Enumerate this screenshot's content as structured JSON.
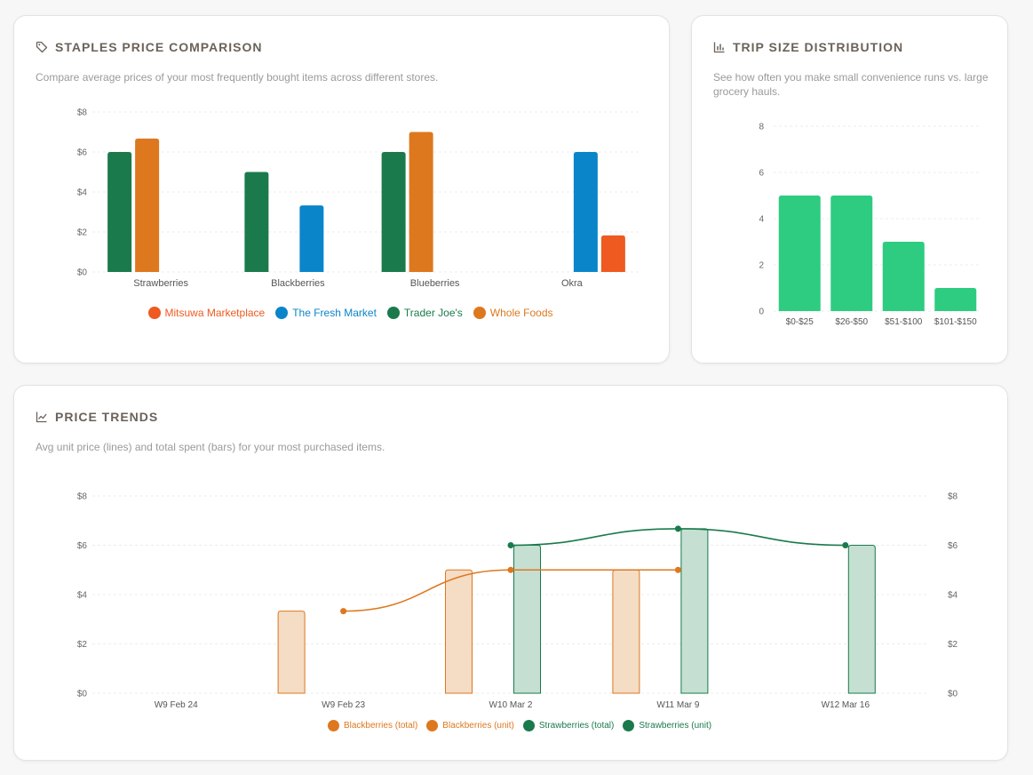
{
  "staples": {
    "title": "Staples Price Comparison",
    "icon": "tag-icon",
    "description": "Compare average prices of your most frequently bought items across different stores.",
    "chart_data": {
      "type": "bar",
      "categories": [
        "Strawberries",
        "Blackberries",
        "Blueberries",
        "Okra"
      ],
      "series": [
        {
          "name": "Trader Joe's",
          "color": "#1a7a4c",
          "values": [
            6.0,
            5.0,
            6.0,
            null
          ]
        },
        {
          "name": "Whole Foods",
          "color": "#dd781f",
          "values": [
            6.67,
            null,
            7.0,
            null
          ]
        },
        {
          "name": "The Fresh Market",
          "color": "#0a85c9",
          "values": [
            null,
            3.33,
            null,
            6.0
          ]
        },
        {
          "name": "Mitsuwa Marketplace",
          "color": "#ee5a1f",
          "values": [
            null,
            null,
            null,
            1.83
          ]
        }
      ],
      "ylim": [
        0,
        8
      ],
      "yticks": [
        "$0",
        "$2",
        "$4",
        "$6",
        "$8"
      ],
      "legend_order": [
        "Mitsuwa Marketplace",
        "The Fresh Market",
        "Trader Joe's",
        "Whole Foods"
      ]
    }
  },
  "tripsize": {
    "title": "Trip Size Distribution",
    "icon": "bar-chart-icon",
    "description": "See how often you make small convenience runs vs. large grocery hauls.",
    "chart_data": {
      "type": "bar",
      "categories": [
        "$0-$25",
        "$26-$50",
        "$51-$100",
        "$101-$150"
      ],
      "values": [
        5,
        5,
        3,
        1
      ],
      "color": "#2ecc80",
      "ylim": [
        0,
        8
      ],
      "yticks": [
        "0",
        "2",
        "4",
        "6",
        "8"
      ]
    }
  },
  "trends": {
    "title": "Price Trends",
    "icon": "line-chart-icon",
    "description": "Avg unit price (lines) and total spent (bars) for your most purchased items.",
    "chart_data": {
      "type": "bar+line",
      "categories": [
        "W9 Feb 24",
        "W9 Feb 23",
        "W10 Mar 2",
        "W11 Mar 9",
        "W12 Mar 16"
      ],
      "ylim": [
        0,
        8
      ],
      "yticks": [
        "$0",
        "$2",
        "$4",
        "$6",
        "$8"
      ],
      "bars": [
        {
          "name": "Blackberries (total)",
          "color": "#dd781f",
          "fill": "#f5dcc4",
          "values": [
            null,
            3.33,
            5.0,
            5.0,
            null
          ]
        },
        {
          "name": "Strawberries (total)",
          "color": "#1a7a4c",
          "fill": "#c5e0d2",
          "values": [
            null,
            null,
            6.0,
            6.67,
            6.0
          ]
        }
      ],
      "lines": [
        {
          "name": "Blackberries (unit)",
          "color": "#dd781f",
          "values": [
            null,
            3.33,
            5.0,
            5.0,
            null
          ]
        },
        {
          "name": "Strawberries (unit)",
          "color": "#1a7a4c",
          "values": [
            null,
            null,
            6.0,
            6.67,
            6.0
          ]
        }
      ],
      "legend": [
        {
          "name": "Blackberries (total)",
          "color": "#dd781f"
        },
        {
          "name": "Blackberries (unit)",
          "color": "#dd781f"
        },
        {
          "name": "Strawberries (total)",
          "color": "#1a7a4c"
        },
        {
          "name": "Strawberries (unit)",
          "color": "#1a7a4c"
        }
      ]
    }
  }
}
